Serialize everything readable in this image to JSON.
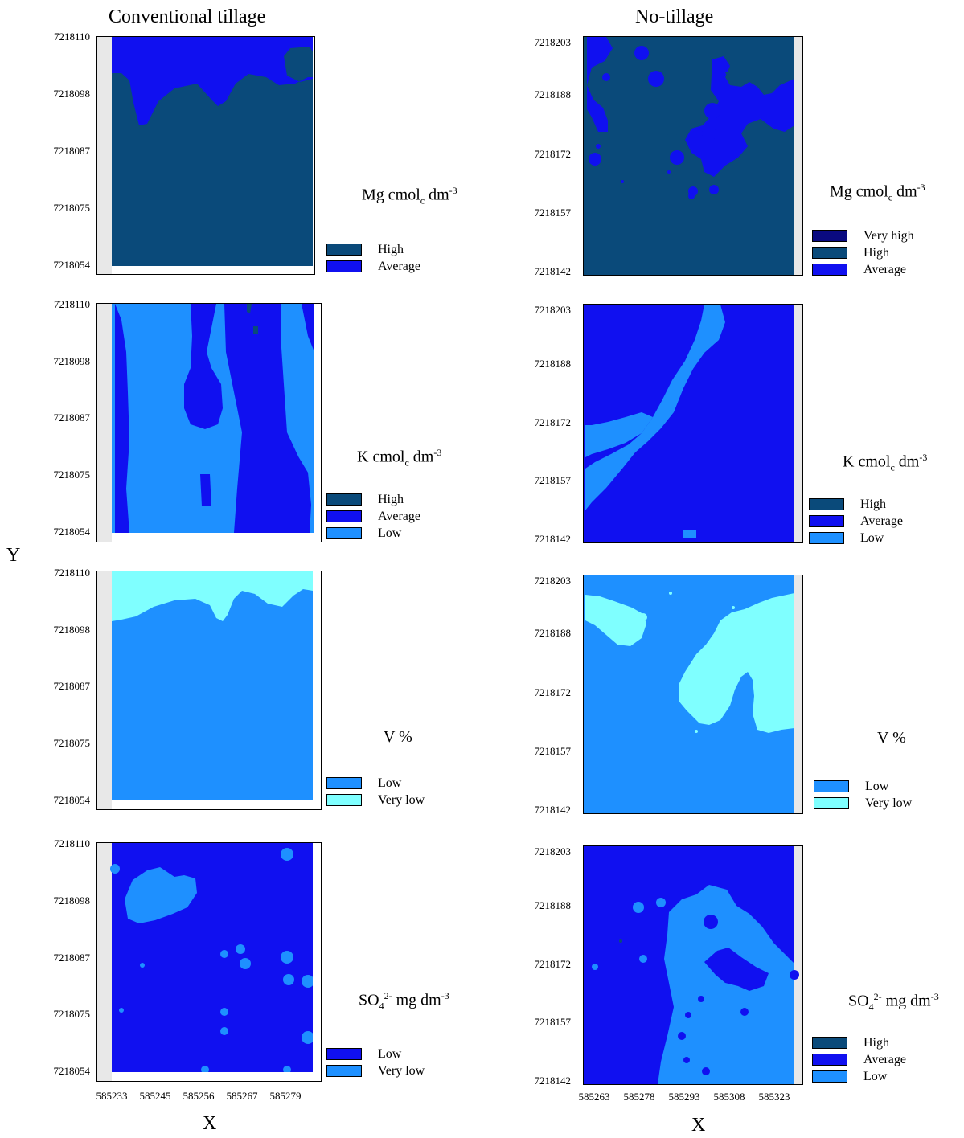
{
  "columns": [
    {
      "title": "Conventional tillage",
      "y_ticks": [
        "7218110",
        "7218098",
        "7218087",
        "7218075",
        "7218054"
      ],
      "x_ticks": [
        "585233",
        "585245",
        "585256",
        "585267",
        "585279"
      ],
      "x_axis_label": "X"
    },
    {
      "title": "No-tillage",
      "y_ticks": [
        "7218203",
        "7218188",
        "7218172",
        "7218157",
        "7218142"
      ],
      "x_ticks": [
        "585263",
        "585278",
        "585293",
        "585308",
        "585323"
      ],
      "x_axis_label": "X"
    }
  ],
  "y_axis_label": "Y",
  "variables": [
    {
      "name_main": "Mg cmol",
      "name_sub": "c",
      "name_rest": " dm",
      "name_sup": "-3"
    },
    {
      "name_main": "K cmol",
      "name_sub": "c",
      "name_rest": " dm",
      "name_sup": "-3"
    },
    {
      "name_main": "V %",
      "name_sub": "",
      "name_rest": "",
      "name_sup": ""
    },
    {
      "name_main": "SO",
      "name_sub": "4",
      "name_rest": " mg dm",
      "name_sup": "2-",
      "name_sup2": "-3"
    }
  ],
  "legends": {
    "ct_mg": [
      {
        "label": "High",
        "color": "#0a4a7a"
      },
      {
        "label": "Average",
        "color": "#1010f0"
      }
    ],
    "nt_mg": [
      {
        "label": "Very high",
        "color": "#0a0a80"
      },
      {
        "label": "High",
        "color": "#0a4a7a"
      },
      {
        "label": "Average",
        "color": "#1010f0"
      }
    ],
    "ct_k": [
      {
        "label": "High",
        "color": "#0a4a7a"
      },
      {
        "label": "Average",
        "color": "#1010f0"
      },
      {
        "label": "Low",
        "color": "#1e90ff"
      }
    ],
    "nt_k": [
      {
        "label": "High",
        "color": "#0a4a7a"
      },
      {
        "label": "Average",
        "color": "#1010f0"
      },
      {
        "label": "Low",
        "color": "#1e90ff"
      }
    ],
    "ct_v": [
      {
        "label": "Low",
        "color": "#1e90ff"
      },
      {
        "label": "Very low",
        "color": "#7fffff"
      }
    ],
    "nt_v": [
      {
        "label": "Low",
        "color": "#1e90ff"
      },
      {
        "label": "Very low",
        "color": "#7fffff"
      }
    ],
    "ct_so4": [
      {
        "label": "Low",
        "color": "#1010f0"
      },
      {
        "label": "Very low",
        "color": "#1e90ff"
      }
    ],
    "nt_so4": [
      {
        "label": "High",
        "color": "#0a4a7a"
      },
      {
        "label": "Average",
        "color": "#1010f0"
      },
      {
        "label": "Low",
        "color": "#1e90ff"
      }
    ]
  },
  "colors": {
    "very_high": "#0a0a80",
    "high": "#0a4a7a",
    "average": "#1010f0",
    "low": "#1e90ff",
    "very_low": "#7fffff",
    "margin_gray": "#e8e8e8"
  }
}
